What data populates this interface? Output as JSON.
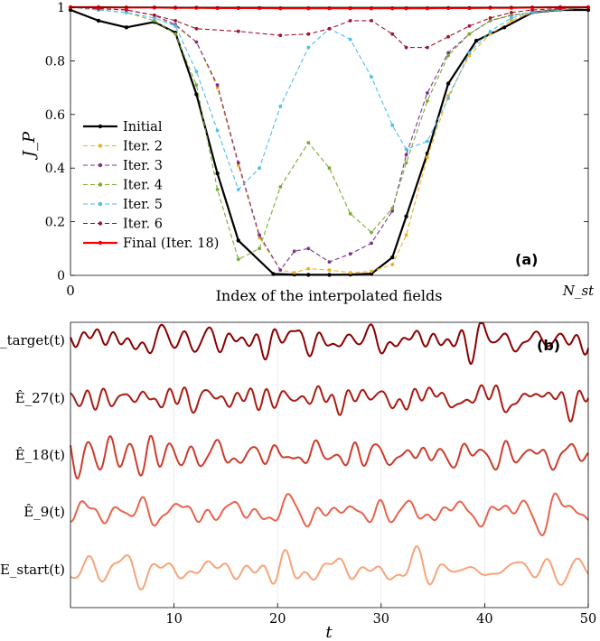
{
  "chart_data": [
    {
      "type": "line",
      "panel_label": "(a)",
      "ylabel": "J_P",
      "xlabel": "Index of the interpolated fields",
      "xticks": [
        "0",
        "N_st"
      ],
      "yticks": [
        "0",
        "0.2",
        "0.4",
        "0.6",
        "0.8",
        "1"
      ],
      "xlim": [
        0,
        1
      ],
      "ylim": [
        0,
        1
      ],
      "legend_position": "center-left",
      "series": [
        {
          "name": "Initial",
          "color": "#000000",
          "style": "solid",
          "width": 2.2,
          "x": [
            0,
            0.0541,
            0.1081,
            0.1622,
            0.2027,
            0.2432,
            0.2838,
            0.3243,
            0.3919,
            0.4324,
            0.4595,
            0.5,
            0.5405,
            0.5811,
            0.6216,
            0.6486,
            0.6892,
            0.7297,
            0.7838,
            0.8378,
            0.8919,
            0.9459,
            1
          ],
          "y": [
            0.99,
            0.95,
            0.925,
            0.945,
            0.905,
            0.675,
            0.38,
            0.13,
            0.005,
            0.003,
            0.002,
            0.002,
            0.003,
            0.006,
            0.067,
            0.22,
            0.455,
            0.715,
            0.875,
            0.925,
            0.98,
            0.99,
            0.99
          ]
        },
        {
          "name": "Iter. 2",
          "color": "#edb120",
          "style": "dashed",
          "width": 1.1,
          "x": [
            0,
            0.0541,
            0.1081,
            0.1622,
            0.2027,
            0.2432,
            0.2838,
            0.3243,
            0.3649,
            0.4054,
            0.4324,
            0.4595,
            0.5,
            0.5405,
            0.5811,
            0.6216,
            0.6486,
            0.6892,
            0.7297,
            0.7703,
            0.8108,
            0.8514,
            0.8919,
            0.9459,
            1
          ],
          "y": [
            1,
            0.995,
            0.99,
            0.97,
            0.93,
            0.87,
            0.7,
            0.41,
            0.14,
            0.02,
            0.01,
            0.025,
            0.02,
            0.01,
            0.015,
            0.04,
            0.15,
            0.44,
            0.67,
            0.82,
            0.9,
            0.95,
            0.98,
            0.99,
            1
          ]
        },
        {
          "name": "Iter. 3",
          "color": "#7e2f8e",
          "style": "dashed",
          "width": 1.1,
          "x": [
            0,
            0.0541,
            0.1081,
            0.1622,
            0.2027,
            0.2432,
            0.2838,
            0.3243,
            0.3649,
            0.4054,
            0.4324,
            0.4595,
            0.5,
            0.5405,
            0.5811,
            0.6216,
            0.6486,
            0.6892,
            0.7297,
            0.7703,
            0.8108,
            0.8514,
            0.8919,
            0.9459,
            1
          ],
          "y": [
            1,
            0.995,
            0.99,
            0.97,
            0.935,
            0.87,
            0.71,
            0.42,
            0.15,
            0.02,
            0.09,
            0.1,
            0.05,
            0.08,
            0.12,
            0.24,
            0.45,
            0.68,
            0.83,
            0.9,
            0.95,
            0.97,
            0.98,
            0.99,
            1
          ]
        },
        {
          "name": "Iter. 4",
          "color": "#77ac30",
          "style": "dashed",
          "width": 1.1,
          "x": [
            0,
            0.0541,
            0.1081,
            0.1622,
            0.2027,
            0.2432,
            0.2838,
            0.3243,
            0.3649,
            0.4054,
            0.4595,
            0.5,
            0.5405,
            0.5811,
            0.6216,
            0.6486,
            0.6892,
            0.7297,
            0.7703,
            0.8108,
            0.8514,
            0.8919,
            0.9459,
            1
          ],
          "y": [
            1,
            0.99,
            0.98,
            0.95,
            0.9,
            0.71,
            0.32,
            0.06,
            0.1,
            0.33,
            0.495,
            0.4,
            0.23,
            0.16,
            0.25,
            0.42,
            0.65,
            0.82,
            0.9,
            0.95,
            0.97,
            0.98,
            0.99,
            1
          ]
        },
        {
          "name": "Iter. 5",
          "color": "#4dbeee",
          "style": "dashed",
          "width": 1.1,
          "x": [
            0,
            0.0541,
            0.1081,
            0.1622,
            0.2027,
            0.2432,
            0.2838,
            0.3243,
            0.3649,
            0.4054,
            0.4595,
            0.5,
            0.5405,
            0.5811,
            0.6216,
            0.6486,
            0.6892,
            0.7297,
            0.7703,
            0.8108,
            0.8514,
            0.8919,
            0.9459,
            1
          ],
          "y": [
            1,
            0.99,
            0.98,
            0.96,
            0.93,
            0.76,
            0.54,
            0.32,
            0.4,
            0.63,
            0.85,
            0.92,
            0.88,
            0.74,
            0.56,
            0.47,
            0.5,
            0.66,
            0.83,
            0.91,
            0.96,
            0.98,
            0.99,
            1
          ]
        },
        {
          "name": "Iter. 6",
          "color": "#a2142f",
          "style": "dashed",
          "width": 1.1,
          "x": [
            0,
            0.0541,
            0.1081,
            0.1622,
            0.2027,
            0.2432,
            0.3243,
            0.4054,
            0.4595,
            0.5,
            0.5405,
            0.5811,
            0.6216,
            0.6486,
            0.6892,
            0.7297,
            0.7703,
            0.8108,
            0.8514,
            0.8919,
            0.9459,
            1
          ],
          "y": [
            1,
            0.995,
            0.99,
            0.97,
            0.95,
            0.92,
            0.91,
            0.895,
            0.9,
            0.92,
            0.95,
            0.95,
            0.9,
            0.85,
            0.85,
            0.89,
            0.93,
            0.96,
            0.98,
            0.99,
            0.995,
            1
          ]
        },
        {
          "name": "Final (Iter. 18)",
          "color": "#ff0000",
          "style": "solid",
          "width": 2.2,
          "x": [
            0,
            0.0541,
            0.1081,
            0.1622,
            0.2027,
            0.2432,
            0.2838,
            0.3243,
            0.3649,
            0.4054,
            0.4595,
            0.5,
            0.5405,
            0.5811,
            0.6216,
            0.6486,
            0.6892,
            0.7297,
            0.7703,
            0.8108,
            0.8514,
            0.8919,
            0.9459,
            1
          ],
          "y": [
            1,
            1,
            0.999,
            0.999,
            0.998,
            0.998,
            0.997,
            0.997,
            0.997,
            0.996,
            0.996,
            0.996,
            0.996,
            0.996,
            0.996,
            0.996,
            0.996,
            0.997,
            0.997,
            0.998,
            0.998,
            0.999,
            1,
            1
          ]
        }
      ]
    },
    {
      "type": "line",
      "panel_label": "(b)",
      "xlabel": "t",
      "xticks": [
        10,
        20,
        30,
        40,
        50
      ],
      "xlim": [
        0,
        50
      ],
      "series": [
        {
          "name": "E_target(t)",
          "offset": 4,
          "color": "#8b0000"
        },
        {
          "name": "Ê_27(t)",
          "offset": 3,
          "color": "#a91c12"
        },
        {
          "name": "Ê_18(t)",
          "offset": 2,
          "color": "#cd3b2c"
        },
        {
          "name": "Ê_9(t)",
          "offset": 1,
          "color": "#e8634c"
        },
        {
          "name": "E_start(t)",
          "offset": 0,
          "color": "#f7a37a"
        }
      ]
    }
  ]
}
